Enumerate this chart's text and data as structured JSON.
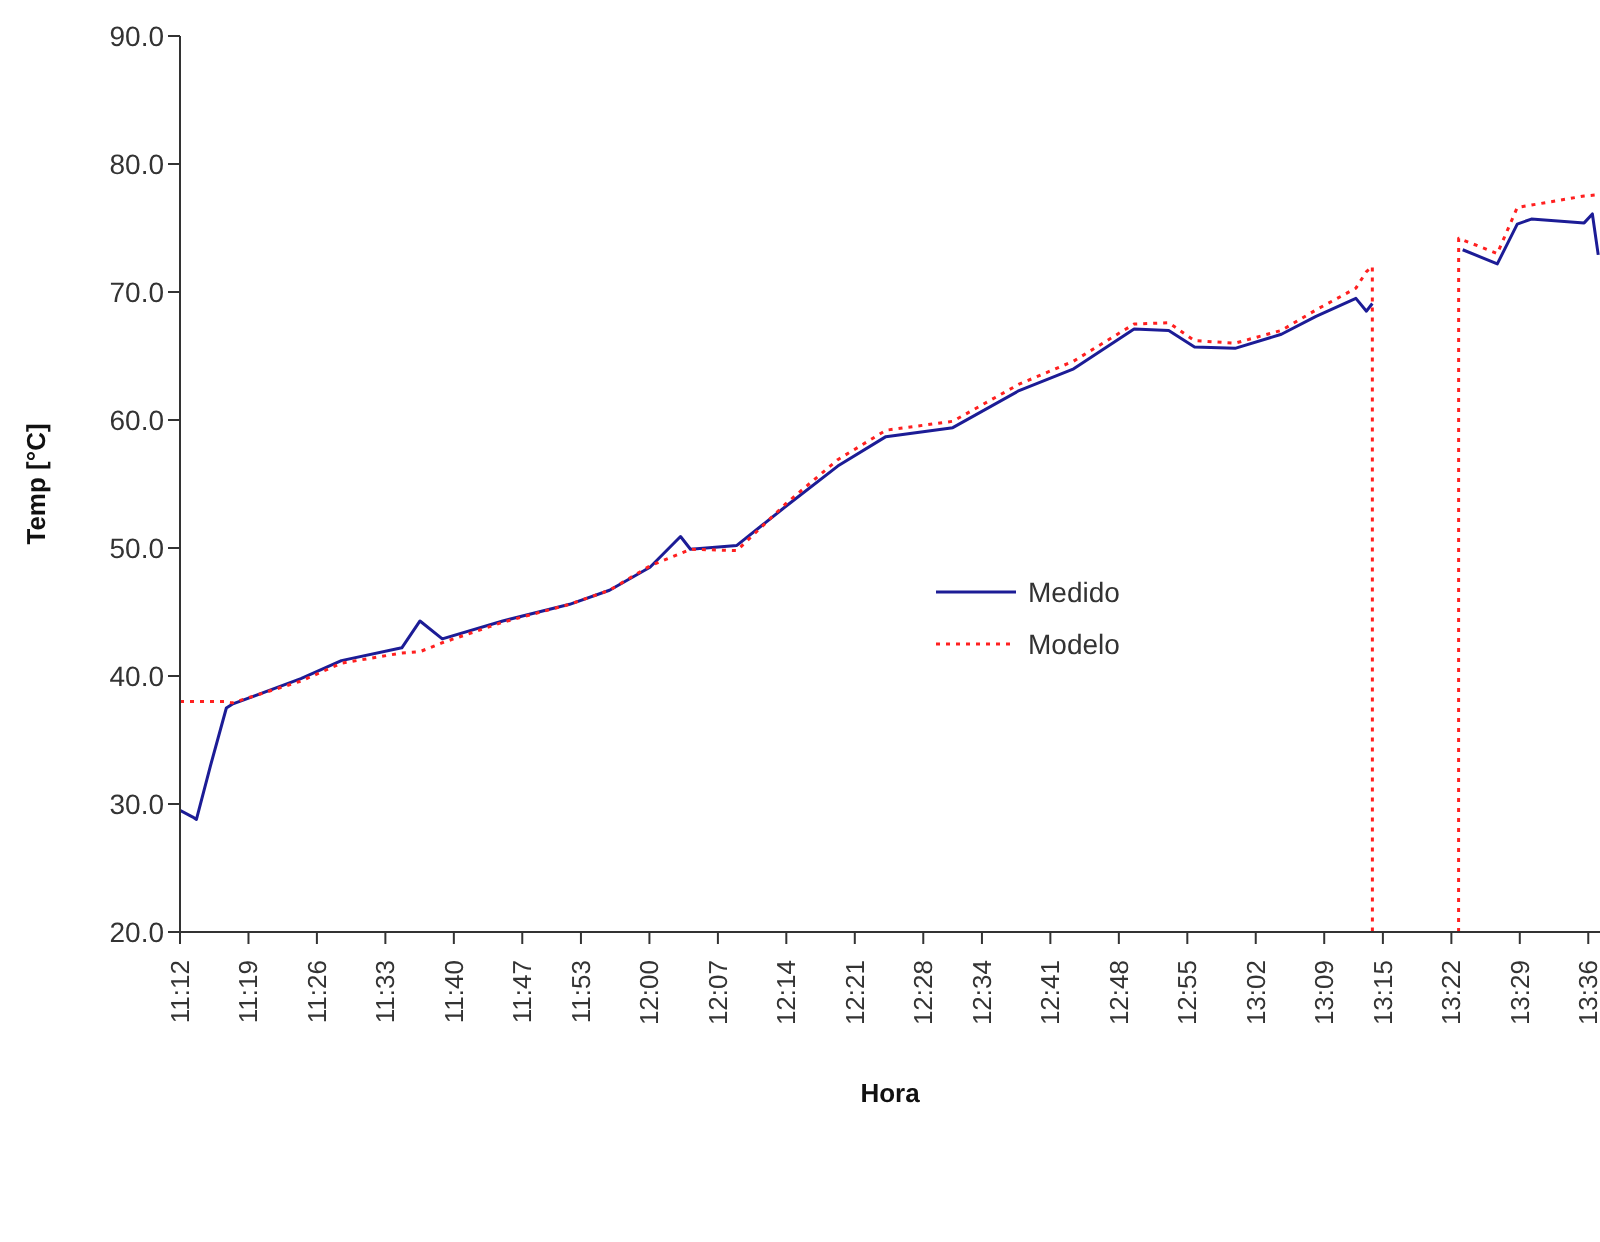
{
  "chart_data": {
    "type": "line",
    "xlabel": "Hora",
    "ylabel": "Temp [°C]",
    "xlim": [
      11.2,
      13.62
    ],
    "ylim": [
      20,
      90
    ],
    "xticks": [
      {
        "value": 11.2,
        "label": "11:12"
      },
      {
        "value": 11.3167,
        "label": "11:19"
      },
      {
        "value": 11.4333,
        "label": "11:26"
      },
      {
        "value": 11.55,
        "label": "11:33"
      },
      {
        "value": 11.6667,
        "label": "11:40"
      },
      {
        "value": 11.7833,
        "label": "11:47"
      },
      {
        "value": 11.8833,
        "label": "11:53"
      },
      {
        "value": 12.0,
        "label": "12:00"
      },
      {
        "value": 12.1167,
        "label": "12:07"
      },
      {
        "value": 12.2333,
        "label": "12:14"
      },
      {
        "value": 12.35,
        "label": "12:21"
      },
      {
        "value": 12.4667,
        "label": "12:28"
      },
      {
        "value": 12.5667,
        "label": "12:34"
      },
      {
        "value": 12.6833,
        "label": "12:41"
      },
      {
        "value": 12.8,
        "label": "12:48"
      },
      {
        "value": 12.9167,
        "label": "12:55"
      },
      {
        "value": 13.0333,
        "label": "13:02"
      },
      {
        "value": 13.15,
        "label": "13:09"
      },
      {
        "value": 13.25,
        "label": "13:15"
      },
      {
        "value": 13.3667,
        "label": "13:22"
      },
      {
        "value": 13.4833,
        "label": "13:29"
      },
      {
        "value": 13.6,
        "label": "13:36"
      }
    ],
    "yticks": [
      {
        "value": 20,
        "label": "20.0"
      },
      {
        "value": 30,
        "label": "30.0"
      },
      {
        "value": 40,
        "label": "40.0"
      },
      {
        "value": 50,
        "label": "50.0"
      },
      {
        "value": 60,
        "label": "60.0"
      },
      {
        "value": 70,
        "label": "70.0"
      },
      {
        "value": 80,
        "label": "80.0"
      },
      {
        "value": 90,
        "label": "90.0"
      }
    ],
    "grid": false,
    "legend": "center",
    "marker": "none",
    "series": [
      {
        "name": "Medido",
        "color": "#1c1c96",
        "line_style": "solid",
        "x": [
          11.2,
          11.221,
          11.228,
          11.252,
          11.279,
          11.289,
          11.406,
          11.475,
          11.578,
          11.609,
          11.647,
          11.75,
          11.864,
          11.932,
          12.001,
          12.053,
          12.07,
          12.149,
          12.231,
          12.321,
          12.403,
          12.517,
          12.63,
          12.723,
          12.826,
          12.885,
          12.929,
          12.998,
          13.077,
          13.136,
          13.204,
          13.222,
          13.232,
          13.3,
          13.386,
          13.445,
          13.479,
          13.503,
          13.593,
          13.607,
          13.617
        ],
        "values": [
          29.5,
          29.0,
          28.8,
          33.0,
          37.5,
          37.8,
          39.8,
          41.2,
          42.2,
          44.3,
          42.9,
          44.3,
          45.6,
          46.7,
          48.5,
          50.9,
          49.9,
          50.2,
          53.2,
          56.4,
          58.7,
          59.4,
          62.3,
          64.0,
          67.1,
          67.0,
          65.7,
          65.6,
          66.7,
          68.1,
          69.5,
          68.5,
          69.1,
          null,
          73.3,
          72.2,
          75.3,
          75.7,
          75.4,
          76.1,
          72.9
        ]
      },
      {
        "name": "Modelo",
        "color": "#ff2020",
        "line_style": "dotted",
        "x": [
          11.2,
          11.279,
          11.289,
          11.406,
          11.475,
          11.578,
          11.609,
          11.647,
          11.75,
          11.864,
          11.932,
          12.001,
          12.07,
          12.149,
          12.231,
          12.321,
          12.403,
          12.517,
          12.63,
          12.723,
          12.826,
          12.885,
          12.929,
          12.998,
          13.077,
          13.136,
          13.204,
          13.222,
          13.232,
          13.2321,
          13.3,
          13.379,
          13.3791,
          13.445,
          13.479,
          13.593,
          13.617
        ],
        "values": [
          38.0,
          38.0,
          37.9,
          39.6,
          41.0,
          41.8,
          41.9,
          42.6,
          44.2,
          45.6,
          46.7,
          48.6,
          49.9,
          49.8,
          53.4,
          56.9,
          59.2,
          59.9,
          62.8,
          64.6,
          67.5,
          67.6,
          66.2,
          66.0,
          67.0,
          68.6,
          70.3,
          71.6,
          72.0,
          20,
          null,
          20,
          74.2,
          73.0,
          76.6,
          77.5,
          77.6
        ]
      }
    ]
  }
}
